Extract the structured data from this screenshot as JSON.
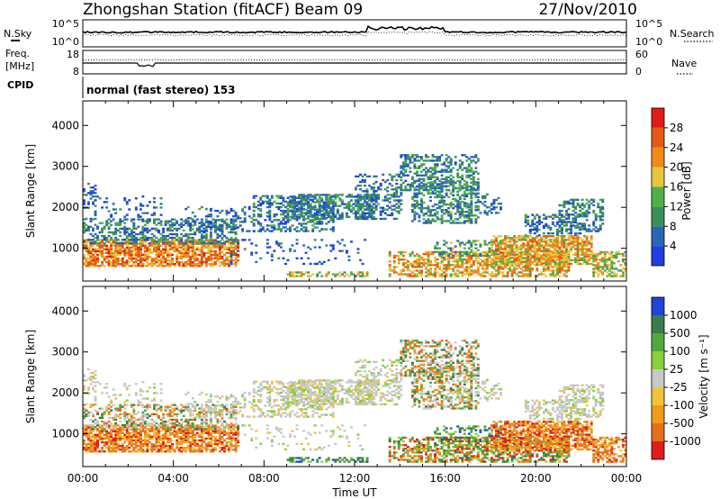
{
  "header": {
    "station": "Zhongshan Station (fitACF)",
    "beam": "Beam 09",
    "date": "27/Nov/2010"
  },
  "noise_panel": {
    "left_label": "N.Sky",
    "left_ticks": [
      "10^5",
      "10^0"
    ],
    "right_label": "N.Search",
    "right_ticks": [
      "10^5",
      "10^0"
    ]
  },
  "freq_panel": {
    "left_label_1": "Freq.",
    "left_label_2": "[MHz]",
    "left_ticks": [
      "18",
      "8"
    ],
    "right_label": "Nave",
    "right_ticks": [
      "60",
      "0"
    ]
  },
  "cpid": {
    "label": "CPID",
    "text": "normal (fast stereo) 153"
  },
  "colors": {
    "power": [
      "#1f3fdf",
      "#2a66b8",
      "#3d8f5a",
      "#4fb04a",
      "#e8c63c",
      "#f08a1c",
      "#e35a14",
      "#e01b1b"
    ],
    "velocity": [
      "#2244d4",
      "#3b7c4a",
      "#51a83e",
      "#88cf3a",
      "#c8c8c8",
      "#f0c33a",
      "#f09a1f",
      "#e5701b",
      "#e01b1b"
    ]
  },
  "chart_data": [
    {
      "type": "heatmap",
      "quantity": "power",
      "ylabel": "Slant Range [km]",
      "yticks": [
        1000,
        2000,
        3000,
        4000
      ],
      "ylim": [
        200,
        4600
      ],
      "xlim": [
        0,
        24
      ],
      "colorbar": {
        "label": "Power [dB]",
        "ticks": [
          "4",
          "8",
          "12",
          "16",
          "20",
          "24",
          "28"
        ]
      }
    },
    {
      "type": "heatmap",
      "quantity": "velocity",
      "ylabel": "Slant Range [km]",
      "xlabel": "Time UT",
      "xticks": [
        "00:00",
        "04:00",
        "08:00",
        "12:00",
        "16:00",
        "20:00",
        "00:00"
      ],
      "yticks": [
        1000,
        2000,
        3000,
        4000
      ],
      "ylim": [
        200,
        4600
      ],
      "xlim": [
        0,
        24
      ],
      "colorbar": {
        "label": "Velocity [m s⁻¹]",
        "ticks": [
          "1000",
          "500",
          "100",
          "25",
          "-25",
          "-100",
          "-500",
          "-1000"
        ]
      }
    }
  ]
}
